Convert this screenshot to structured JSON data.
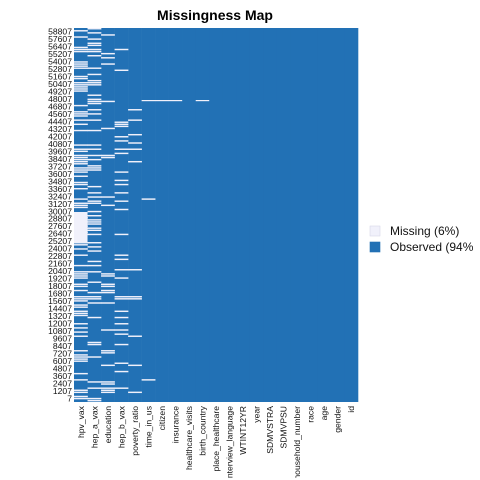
{
  "chart_data": {
    "type": "heatmap",
    "title": "Missingness Map",
    "variables": [
      "hpv_vax",
      "hep_a_vax",
      "education",
      "hep_b_vax",
      "poverty_ratio",
      "time_in_us",
      "citizen",
      "insurance",
      "healthcare_visits",
      "birth_country",
      "place_healthcare",
      "interview_language",
      "WTINT12YR",
      "year",
      "SDMVSTRA",
      "SDMVPSU",
      "household_number",
      "race",
      "age",
      "gender",
      "id"
    ],
    "y_tick_labels": [
      "58807",
      "57607",
      "56407",
      "55207",
      "54007",
      "52807",
      "51607",
      "50407",
      "49207",
      "48007",
      "46807",
      "45607",
      "44407",
      "43207",
      "42007",
      "40807",
      "39607",
      "38407",
      "37207",
      "36007",
      "34807",
      "33607",
      "32407",
      "31207",
      "30007",
      "28807",
      "27607",
      "26407",
      "25207",
      "24007",
      "22807",
      "21607",
      "20407",
      "19207",
      "18007",
      "16807",
      "15607",
      "14407",
      "13207",
      "12007",
      "10807",
      "9607",
      "8407",
      "7207",
      "6007",
      "4807",
      "3607",
      "2407",
      "1207",
      "7"
    ],
    "legend": [
      {
        "label": "Missing (6%)",
        "color": "#f1f1fb"
      },
      {
        "label": "Observed (94%",
        "color": "#2271b5"
      }
    ],
    "legend_position": "right",
    "colors": {
      "missing": "#f1f1fb",
      "observed": "#2271b5"
    }
  }
}
